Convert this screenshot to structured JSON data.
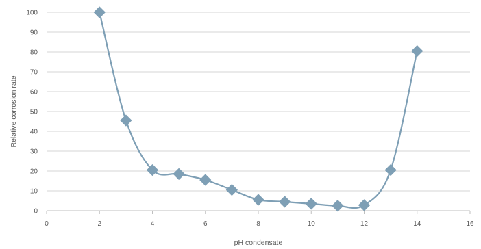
{
  "chart_data": {
    "type": "scatter",
    "style": "smooth-line-with-markers",
    "title": "",
    "xlabel": "pH condensate",
    "ylabel": "Relative corrosion rate",
    "xlim": [
      0,
      16
    ],
    "ylim": [
      0,
      100
    ],
    "xticks": [
      0,
      2,
      4,
      6,
      8,
      10,
      12,
      14,
      16
    ],
    "yticks": [
      0,
      10,
      20,
      30,
      40,
      50,
      60,
      70,
      80,
      90,
      100
    ],
    "grid": "horizontal",
    "legend": "none",
    "series": [
      {
        "color": "#7e9fb5",
        "marker": "diamond",
        "points": [
          {
            "x": 2,
            "y": 100
          },
          {
            "x": 3,
            "y": 45.5
          },
          {
            "x": 4,
            "y": 20.5
          },
          {
            "x": 5,
            "y": 18.5
          },
          {
            "x": 6,
            "y": 15.5
          },
          {
            "x": 7,
            "y": 10.5
          },
          {
            "x": 8,
            "y": 5.5
          },
          {
            "x": 9,
            "y": 4.5
          },
          {
            "x": 10,
            "y": 3.5
          },
          {
            "x": 11,
            "y": 2.5
          },
          {
            "x": 12,
            "y": 2.8
          },
          {
            "x": 13,
            "y": 20.5
          },
          {
            "x": 14,
            "y": 80.5
          }
        ]
      }
    ]
  },
  "colors": {
    "line": "#7e9fb5",
    "marker": "#7e9fb5",
    "grid": "#d4d4d4",
    "axis": "#bfbfbf",
    "text": "#595959"
  }
}
